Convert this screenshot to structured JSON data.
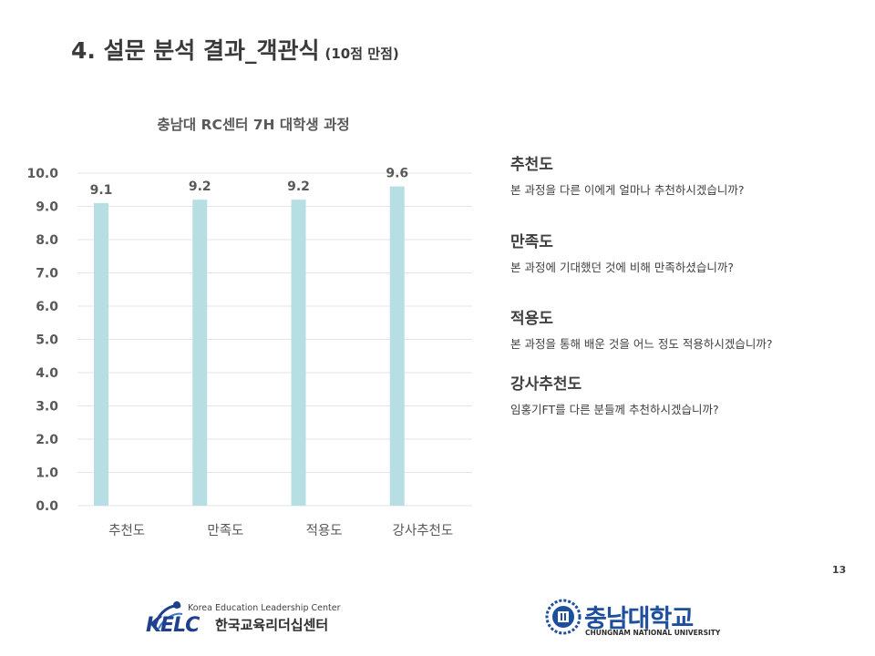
{
  "slide": {
    "title": "4. 설문 분석 결과_객관식",
    "title_sub": "(10점 만점)",
    "page_number": "13"
  },
  "chart_data": {
    "type": "bar",
    "title": "충남대 RC센터 7H 대학생 과정",
    "categories": [
      "추천도",
      "만족도",
      "적용도",
      "강사추천도"
    ],
    "values": [
      9.1,
      9.2,
      9.2,
      9.6
    ],
    "value_labels": [
      "9.1",
      "9.2",
      "9.2",
      "9.6"
    ],
    "ylim": [
      0,
      10
    ],
    "yticks": [
      "0.0",
      "1.0",
      "2.0",
      "3.0",
      "4.0",
      "5.0",
      "6.0",
      "7.0",
      "8.0",
      "9.0",
      "10.0"
    ],
    "grid": true,
    "bar_color": "#b7dee3",
    "grid_color": "#e6e6e6"
  },
  "questions": [
    {
      "title": "추천도",
      "text": "본 과정을 다른 이에게 얼마나 추천하시겠습니까?"
    },
    {
      "title": "만족도",
      "text": "본 과정에 기대했던 것에 비해 만족하셨습니까?"
    },
    {
      "title": "적용도",
      "text": "본 과정을 통해 배운 것을 어느 정도 적용하시겠습니까?"
    },
    {
      "title": "강사추천도",
      "text": "임홍기FT를 다른 분들께 추천하시겠습니까?"
    }
  ],
  "footer": {
    "kelc_en": "Korea Education Leadership Center",
    "kelc_mark": "KELC",
    "kelc_ko": "한국교육리더십센터",
    "cnu_ko": "충남대학교",
    "cnu_en": "CHUNGNAM NATIONAL UNIVERSITY"
  }
}
